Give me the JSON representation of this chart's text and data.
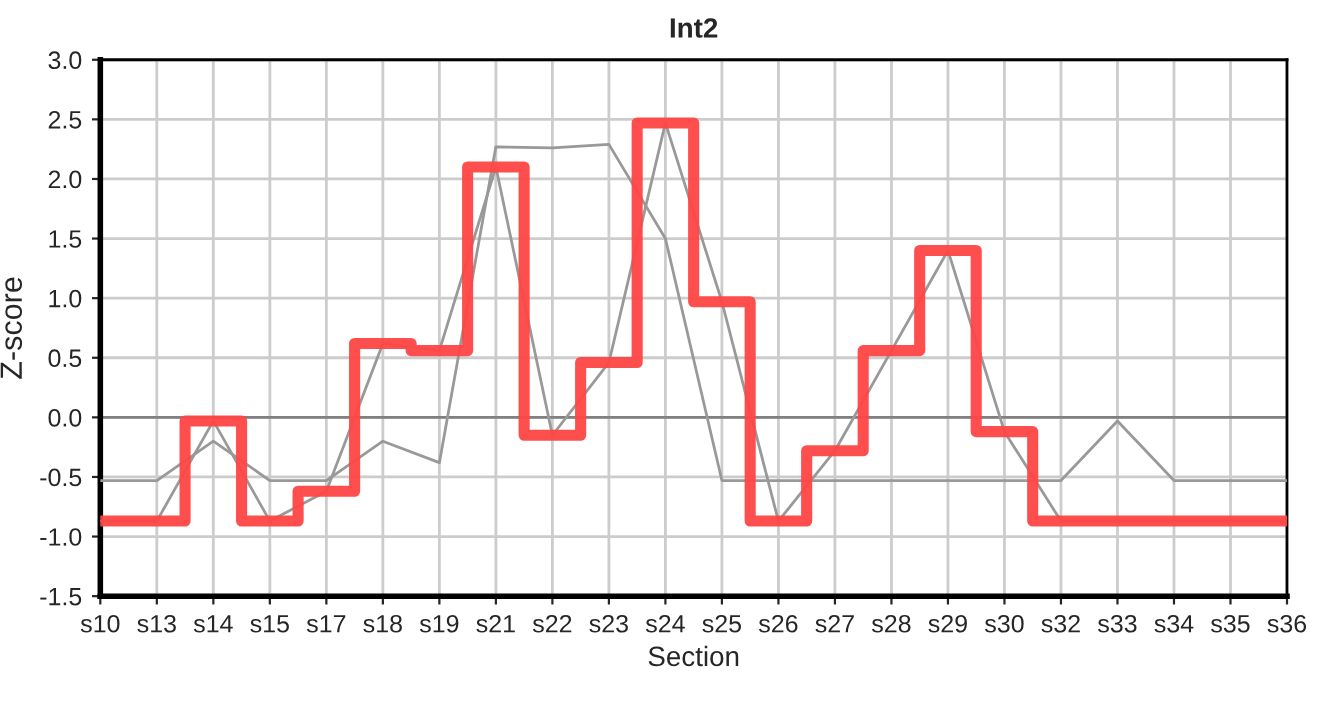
{
  "chart_data": {
    "type": "line",
    "title": "Int2",
    "xlabel": "Section",
    "ylabel": "Z-score",
    "categories": [
      "s10",
      "s13",
      "s14",
      "s15",
      "s17",
      "s18",
      "s19",
      "s21",
      "s22",
      "s23",
      "s24",
      "s25",
      "s26",
      "s27",
      "s28",
      "s29",
      "s30",
      "s32",
      "s33",
      "s34",
      "s35",
      "s36"
    ],
    "series": [
      {
        "color": "#999999",
        "values": [
          -0.53,
          -0.53,
          -0.2,
          -0.53,
          -0.53,
          -0.2,
          -0.38,
          2.27,
          2.26,
          2.29,
          1.5,
          -0.53,
          -0.53,
          -0.53,
          -0.53,
          -0.53,
          -0.53,
          -0.53,
          -0.03,
          -0.53,
          -0.53,
          -0.53
        ]
      },
      {
        "color": "#999999",
        "values": [
          -0.87,
          -0.87,
          -0.03,
          -0.87,
          -0.62,
          0.62,
          0.56,
          2.1,
          -0.15,
          0.46,
          2.47,
          0.97,
          -0.87,
          -0.28,
          0.56,
          1.4,
          -0.12,
          -0.87,
          -0.87,
          -0.87,
          -0.87,
          -0.87
        ]
      },
      {
        "type": "step",
        "color": "#ff4444",
        "values": [
          -0.87,
          -0.87,
          -0.03,
          -0.87,
          -0.62,
          0.62,
          0.56,
          2.1,
          -0.15,
          0.46,
          2.47,
          0.97,
          -0.87,
          -0.28,
          0.56,
          1.4,
          -0.12,
          -0.87,
          -0.87,
          -0.87,
          -0.87,
          -0.87
        ]
      }
    ],
    "ylim": [
      -1.5,
      3.0
    ],
    "yticks": [
      {
        "value": -1.5,
        "label": "-1.5"
      },
      {
        "value": -1,
        "label": "-1.0"
      },
      {
        "value": -0.5,
        "label": "-0.5"
      },
      {
        "value": 0,
        "label": "0.0"
      },
      {
        "value": 0.5,
        "label": "0.5"
      },
      {
        "value": 1,
        "label": "1.0"
      },
      {
        "value": 1.5,
        "label": "1.5"
      },
      {
        "value": 2,
        "label": "2.0"
      },
      {
        "value": 2.5,
        "label": "2.5"
      },
      {
        "value": 3,
        "label": "3.0"
      }
    ],
    "ref_lines": [
      {
        "axis": "y",
        "value": 0,
        "color": "#808080"
      }
    ],
    "grid": true,
    "legend": false
  }
}
